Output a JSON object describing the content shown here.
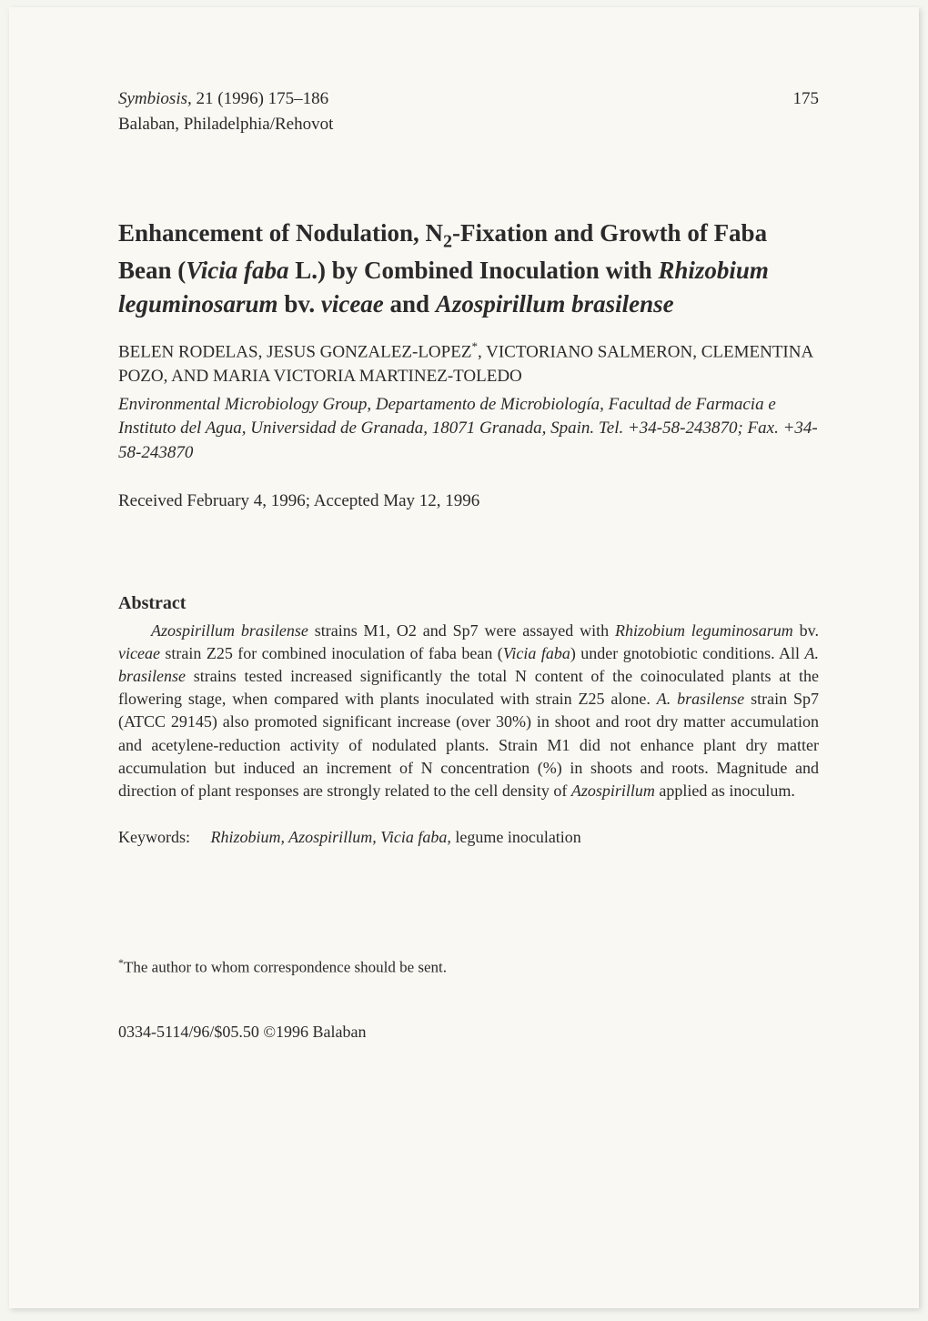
{
  "header": {
    "journal_name": "Symbiosis,",
    "volume_year_pages": " 21 (1996) 175–186",
    "publisher": "Balaban, Philadelphia/Rehovot",
    "page_number": "175"
  },
  "title": {
    "line1_a": "Enhancement of Nodulation, N",
    "line1_sub": "2",
    "line1_b": "-Fixation and Growth",
    "line2_a": "of Faba Bean (",
    "line2_i": "Vicia faba",
    "line2_b": " L.) by Combined Inoculation",
    "line3_a": "with ",
    "line3_i1": "Rhizobium leguminosarum",
    "line3_b": " bv. ",
    "line3_i2": "viceae",
    "line3_c": " and",
    "line4_i": "Azospirillum brasilense"
  },
  "authors": {
    "text_a": "BELEN RODELAS, JESUS GONZALEZ-LOPEZ",
    "sup": "*",
    "text_b": ", VICTORIANO SALMERON, CLEMENTINA POZO, AND MARIA VICTORIA MARTINEZ-TOLEDO"
  },
  "affiliation": "Environmental Microbiology Group, Departamento de Microbiología, Facultad de Farmacia e Instituto del Agua, Universidad de Granada, 18071 Granada, Spain. Tel. +34-58-243870; Fax. +34-58-243870",
  "received": "Received February 4, 1996; Accepted May 12, 1996",
  "abstract": {
    "heading": "Abstract",
    "p1_i1": "Azospirillum brasilense",
    "p1_a": " strains M1, O2 and Sp7 were assayed with ",
    "p1_i2": "Rhizobium leguminosarum",
    "p1_b": " bv. ",
    "p1_i3": "viceae",
    "p1_c": " strain Z25 for combined inoculation of faba bean (",
    "p1_i4": "Vicia faba",
    "p1_d": ") under gnotobiotic conditions. All ",
    "p1_i5": "A. brasilense",
    "p1_e": " strains tested increased significantly the total N content of the coinoculated plants at the flowering stage, when compared with plants inoculated with strain Z25 alone. ",
    "p1_i6": "A. brasilense",
    "p1_f": " strain Sp7 (ATCC 29145) also promoted significant increase (over 30%) in shoot and root dry matter accumulation and acetylene-reduction activity of nodulated plants. Strain M1 did not enhance plant dry matter accumulation but induced an increment of N concentration (%) in shoots and roots. Magnitude and direction of plant responses are strongly related to the cell density of ",
    "p1_i7": "Azospirillum",
    "p1_g": " applied as inoculum."
  },
  "keywords": {
    "label": "Keywords:",
    "i1": "Rhizobium, Azospirillum, Vicia faba,",
    "rest": " legume inoculation"
  },
  "footnote": {
    "sup": "*",
    "text": "The author to whom correspondence should be sent."
  },
  "copyright": "0334-5114/96/$05.50 ©1996 Balaban"
}
